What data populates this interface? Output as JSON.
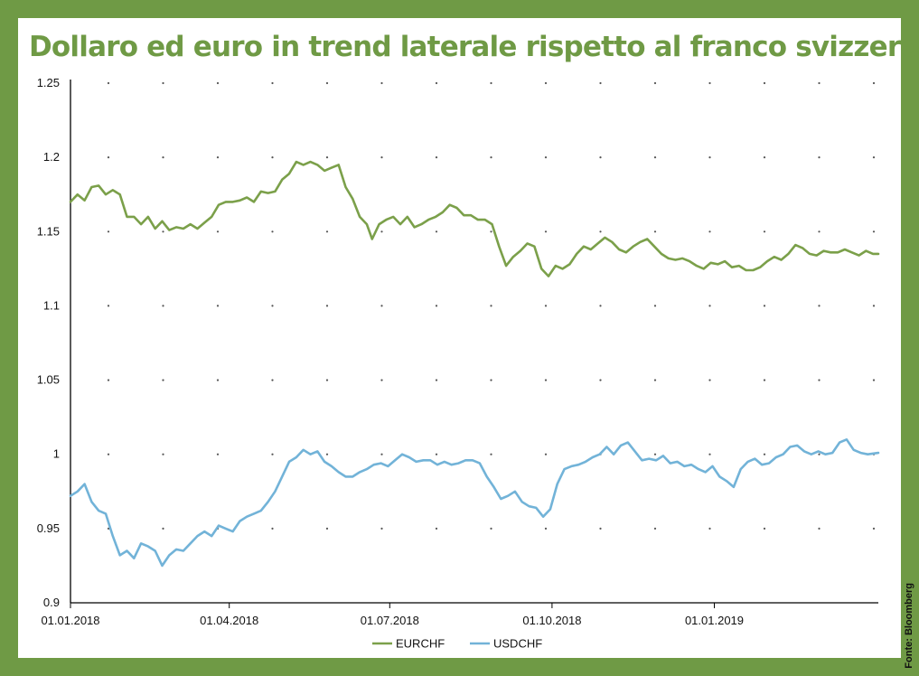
{
  "title": "Dollaro ed euro in trend laterale rispetto al franco svizzero",
  "source": "Fonte: Bloomberg",
  "colors": {
    "background": "#6f9a45",
    "eurchf": "#7ba04a",
    "usdchf": "#72b3d8"
  },
  "chart_data": {
    "type": "line",
    "title": "Dollaro ed euro in trend laterale rispetto al franco svizzero",
    "xlabel": "",
    "ylabel": "",
    "ylim": [
      0.9,
      1.25
    ],
    "yticks": [
      0.9,
      0.95,
      1,
      1.05,
      1.1,
      1.15,
      1.2,
      1.25
    ],
    "ytick_labels": [
      "0.9",
      "0.95",
      "1",
      "1.05",
      "1.1",
      "1.15",
      "1.2",
      "1.25"
    ],
    "xlim": [
      "2018-01-01",
      "2019-04-04"
    ],
    "xticks": [
      "2018-01-01",
      "2018-04-01",
      "2018-07-01",
      "2018-10-01",
      "2019-01-01"
    ],
    "xtick_labels": [
      "01.01.2018",
      "01.04.2018",
      "01.07.2018",
      "01.10.2018",
      "01.01.2019"
    ],
    "grid": "dotted",
    "legend": "bottom-center",
    "series": [
      {
        "name": "EURCHF",
        "color": "#7ba04a",
        "points": [
          [
            "2018-01-01",
            1.17
          ],
          [
            "2018-01-05",
            1.175
          ],
          [
            "2018-01-09",
            1.171
          ],
          [
            "2018-01-13",
            1.18
          ],
          [
            "2018-01-17",
            1.181
          ],
          [
            "2018-01-21",
            1.175
          ],
          [
            "2018-01-25",
            1.178
          ],
          [
            "2018-01-29",
            1.175
          ],
          [
            "2018-02-02",
            1.16
          ],
          [
            "2018-02-06",
            1.16
          ],
          [
            "2018-02-10",
            1.155
          ],
          [
            "2018-02-14",
            1.16
          ],
          [
            "2018-02-18",
            1.152
          ],
          [
            "2018-02-22",
            1.157
          ],
          [
            "2018-02-26",
            1.151
          ],
          [
            "2018-03-02",
            1.153
          ],
          [
            "2018-03-06",
            1.152
          ],
          [
            "2018-03-10",
            1.155
          ],
          [
            "2018-03-14",
            1.152
          ],
          [
            "2018-03-18",
            1.156
          ],
          [
            "2018-03-22",
            1.16
          ],
          [
            "2018-03-26",
            1.168
          ],
          [
            "2018-03-30",
            1.17
          ],
          [
            "2018-04-03",
            1.17
          ],
          [
            "2018-04-07",
            1.171
          ],
          [
            "2018-04-11",
            1.173
          ],
          [
            "2018-04-15",
            1.17
          ],
          [
            "2018-04-19",
            1.177
          ],
          [
            "2018-04-23",
            1.176
          ],
          [
            "2018-04-27",
            1.177
          ],
          [
            "2018-05-01",
            1.185
          ],
          [
            "2018-05-05",
            1.189
          ],
          [
            "2018-05-09",
            1.197
          ],
          [
            "2018-05-13",
            1.195
          ],
          [
            "2018-05-17",
            1.197
          ],
          [
            "2018-05-21",
            1.195
          ],
          [
            "2018-05-25",
            1.191
          ],
          [
            "2018-05-29",
            1.193
          ],
          [
            "2018-06-02",
            1.195
          ],
          [
            "2018-06-06",
            1.18
          ],
          [
            "2018-06-10",
            1.172
          ],
          [
            "2018-06-14",
            1.16
          ],
          [
            "2018-06-18",
            1.155
          ],
          [
            "2018-06-21",
            1.145
          ],
          [
            "2018-06-25",
            1.155
          ],
          [
            "2018-06-29",
            1.158
          ],
          [
            "2018-07-03",
            1.16
          ],
          [
            "2018-07-07",
            1.155
          ],
          [
            "2018-07-11",
            1.16
          ],
          [
            "2018-07-15",
            1.153
          ],
          [
            "2018-07-19",
            1.155
          ],
          [
            "2018-07-23",
            1.158
          ],
          [
            "2018-07-27",
            1.16
          ],
          [
            "2018-07-31",
            1.163
          ],
          [
            "2018-08-04",
            1.168
          ],
          [
            "2018-08-08",
            1.166
          ],
          [
            "2018-08-12",
            1.161
          ],
          [
            "2018-08-16",
            1.161
          ],
          [
            "2018-08-20",
            1.158
          ],
          [
            "2018-08-24",
            1.158
          ],
          [
            "2018-08-28",
            1.155
          ],
          [
            "2018-09-01",
            1.14
          ],
          [
            "2018-09-05",
            1.127
          ],
          [
            "2018-09-09",
            1.133
          ],
          [
            "2018-09-13",
            1.137
          ],
          [
            "2018-09-17",
            1.142
          ],
          [
            "2018-09-21",
            1.14
          ],
          [
            "2018-09-25",
            1.125
          ],
          [
            "2018-09-29",
            1.12
          ],
          [
            "2018-10-03",
            1.127
          ],
          [
            "2018-10-07",
            1.125
          ],
          [
            "2018-10-11",
            1.128
          ],
          [
            "2018-10-15",
            1.135
          ],
          [
            "2018-10-19",
            1.14
          ],
          [
            "2018-10-23",
            1.138
          ],
          [
            "2018-10-27",
            1.142
          ],
          [
            "2018-10-31",
            1.146
          ],
          [
            "2018-11-04",
            1.143
          ],
          [
            "2018-11-08",
            1.138
          ],
          [
            "2018-11-12",
            1.136
          ],
          [
            "2018-11-16",
            1.14
          ],
          [
            "2018-11-20",
            1.143
          ],
          [
            "2018-11-24",
            1.145
          ],
          [
            "2018-11-28",
            1.14
          ],
          [
            "2018-12-02",
            1.135
          ],
          [
            "2018-12-06",
            1.132
          ],
          [
            "2018-12-10",
            1.131
          ],
          [
            "2018-12-14",
            1.132
          ],
          [
            "2018-12-18",
            1.13
          ],
          [
            "2018-12-22",
            1.127
          ],
          [
            "2018-12-26",
            1.125
          ],
          [
            "2018-12-30",
            1.129
          ],
          [
            "2019-01-03",
            1.128
          ],
          [
            "2019-01-07",
            1.13
          ],
          [
            "2019-01-11",
            1.126
          ],
          [
            "2019-01-15",
            1.127
          ],
          [
            "2019-01-19",
            1.124
          ],
          [
            "2019-01-23",
            1.124
          ],
          [
            "2019-01-27",
            1.126
          ],
          [
            "2019-01-31",
            1.13
          ],
          [
            "2019-02-04",
            1.133
          ],
          [
            "2019-02-08",
            1.131
          ],
          [
            "2019-02-12",
            1.135
          ],
          [
            "2019-02-16",
            1.141
          ],
          [
            "2019-02-20",
            1.139
          ],
          [
            "2019-02-24",
            1.135
          ],
          [
            "2019-02-28",
            1.134
          ],
          [
            "2019-03-04",
            1.137
          ],
          [
            "2019-03-08",
            1.136
          ],
          [
            "2019-03-12",
            1.136
          ],
          [
            "2019-03-16",
            1.138
          ],
          [
            "2019-03-20",
            1.136
          ],
          [
            "2019-03-24",
            1.134
          ],
          [
            "2019-03-28",
            1.137
          ],
          [
            "2019-04-01",
            1.135
          ],
          [
            "2019-04-04",
            1.135
          ]
        ]
      },
      {
        "name": "USDCHF",
        "color": "#72b3d8",
        "points": [
          [
            "2018-01-01",
            0.972
          ],
          [
            "2018-01-05",
            0.975
          ],
          [
            "2018-01-09",
            0.98
          ],
          [
            "2018-01-13",
            0.968
          ],
          [
            "2018-01-17",
            0.962
          ],
          [
            "2018-01-21",
            0.96
          ],
          [
            "2018-01-25",
            0.945
          ],
          [
            "2018-01-29",
            0.932
          ],
          [
            "2018-02-02",
            0.935
          ],
          [
            "2018-02-06",
            0.93
          ],
          [
            "2018-02-10",
            0.94
          ],
          [
            "2018-02-14",
            0.938
          ],
          [
            "2018-02-18",
            0.935
          ],
          [
            "2018-02-22",
            0.925
          ],
          [
            "2018-02-26",
            0.932
          ],
          [
            "2018-03-02",
            0.936
          ],
          [
            "2018-03-06",
            0.935
          ],
          [
            "2018-03-10",
            0.94
          ],
          [
            "2018-03-14",
            0.945
          ],
          [
            "2018-03-18",
            0.948
          ],
          [
            "2018-03-22",
            0.945
          ],
          [
            "2018-03-26",
            0.952
          ],
          [
            "2018-03-30",
            0.95
          ],
          [
            "2018-04-03",
            0.948
          ],
          [
            "2018-04-07",
            0.955
          ],
          [
            "2018-04-11",
            0.958
          ],
          [
            "2018-04-15",
            0.96
          ],
          [
            "2018-04-19",
            0.962
          ],
          [
            "2018-04-23",
            0.968
          ],
          [
            "2018-04-27",
            0.975
          ],
          [
            "2018-05-01",
            0.985
          ],
          [
            "2018-05-05",
            0.995
          ],
          [
            "2018-05-09",
            0.998
          ],
          [
            "2018-05-13",
            1.003
          ],
          [
            "2018-05-17",
            1.0
          ],
          [
            "2018-05-21",
            1.002
          ],
          [
            "2018-05-25",
            0.995
          ],
          [
            "2018-05-29",
            0.992
          ],
          [
            "2018-06-02",
            0.988
          ],
          [
            "2018-06-06",
            0.985
          ],
          [
            "2018-06-10",
            0.985
          ],
          [
            "2018-06-14",
            0.988
          ],
          [
            "2018-06-18",
            0.99
          ],
          [
            "2018-06-22",
            0.993
          ],
          [
            "2018-06-26",
            0.994
          ],
          [
            "2018-06-30",
            0.992
          ],
          [
            "2018-07-04",
            0.996
          ],
          [
            "2018-07-08",
            1.0
          ],
          [
            "2018-07-12",
            0.998
          ],
          [
            "2018-07-16",
            0.995
          ],
          [
            "2018-07-20",
            0.996
          ],
          [
            "2018-07-24",
            0.996
          ],
          [
            "2018-07-28",
            0.993
          ],
          [
            "2018-08-01",
            0.995
          ],
          [
            "2018-08-05",
            0.993
          ],
          [
            "2018-08-09",
            0.994
          ],
          [
            "2018-08-13",
            0.996
          ],
          [
            "2018-08-17",
            0.996
          ],
          [
            "2018-08-21",
            0.994
          ],
          [
            "2018-08-25",
            0.985
          ],
          [
            "2018-08-29",
            0.978
          ],
          [
            "2018-09-02",
            0.97
          ],
          [
            "2018-09-06",
            0.972
          ],
          [
            "2018-09-10",
            0.975
          ],
          [
            "2018-09-14",
            0.968
          ],
          [
            "2018-09-18",
            0.965
          ],
          [
            "2018-09-22",
            0.964
          ],
          [
            "2018-09-26",
            0.958
          ],
          [
            "2018-09-30",
            0.963
          ],
          [
            "2018-10-04",
            0.98
          ],
          [
            "2018-10-08",
            0.99
          ],
          [
            "2018-10-12",
            0.992
          ],
          [
            "2018-10-16",
            0.993
          ],
          [
            "2018-10-20",
            0.995
          ],
          [
            "2018-10-24",
            0.998
          ],
          [
            "2018-10-28",
            1.0
          ],
          [
            "2018-11-01",
            1.005
          ],
          [
            "2018-11-05",
            1.0
          ],
          [
            "2018-11-09",
            1.006
          ],
          [
            "2018-11-13",
            1.008
          ],
          [
            "2018-11-17",
            1.002
          ],
          [
            "2018-11-21",
            0.996
          ],
          [
            "2018-11-25",
            0.997
          ],
          [
            "2018-11-29",
            0.996
          ],
          [
            "2018-12-03",
            0.999
          ],
          [
            "2018-12-07",
            0.994
          ],
          [
            "2018-12-11",
            0.995
          ],
          [
            "2018-12-15",
            0.992
          ],
          [
            "2018-12-19",
            0.993
          ],
          [
            "2018-12-23",
            0.99
          ],
          [
            "2018-12-27",
            0.988
          ],
          [
            "2018-12-31",
            0.992
          ],
          [
            "2019-01-04",
            0.985
          ],
          [
            "2019-01-08",
            0.982
          ],
          [
            "2019-01-12",
            0.978
          ],
          [
            "2019-01-16",
            0.99
          ],
          [
            "2019-01-20",
            0.995
          ],
          [
            "2019-01-24",
            0.997
          ],
          [
            "2019-01-28",
            0.993
          ],
          [
            "2019-02-01",
            0.994
          ],
          [
            "2019-02-05",
            0.998
          ],
          [
            "2019-02-09",
            1.0
          ],
          [
            "2019-02-13",
            1.005
          ],
          [
            "2019-02-17",
            1.006
          ],
          [
            "2019-02-21",
            1.002
          ],
          [
            "2019-02-25",
            1.0
          ],
          [
            "2019-03-01",
            1.002
          ],
          [
            "2019-03-05",
            1.0
          ],
          [
            "2019-03-09",
            1.001
          ],
          [
            "2019-03-13",
            1.008
          ],
          [
            "2019-03-17",
            1.01
          ],
          [
            "2019-03-21",
            1.003
          ],
          [
            "2019-03-25",
            1.001
          ],
          [
            "2019-03-29",
            1.0
          ],
          [
            "2019-04-04",
            1.001
          ]
        ]
      }
    ]
  }
}
